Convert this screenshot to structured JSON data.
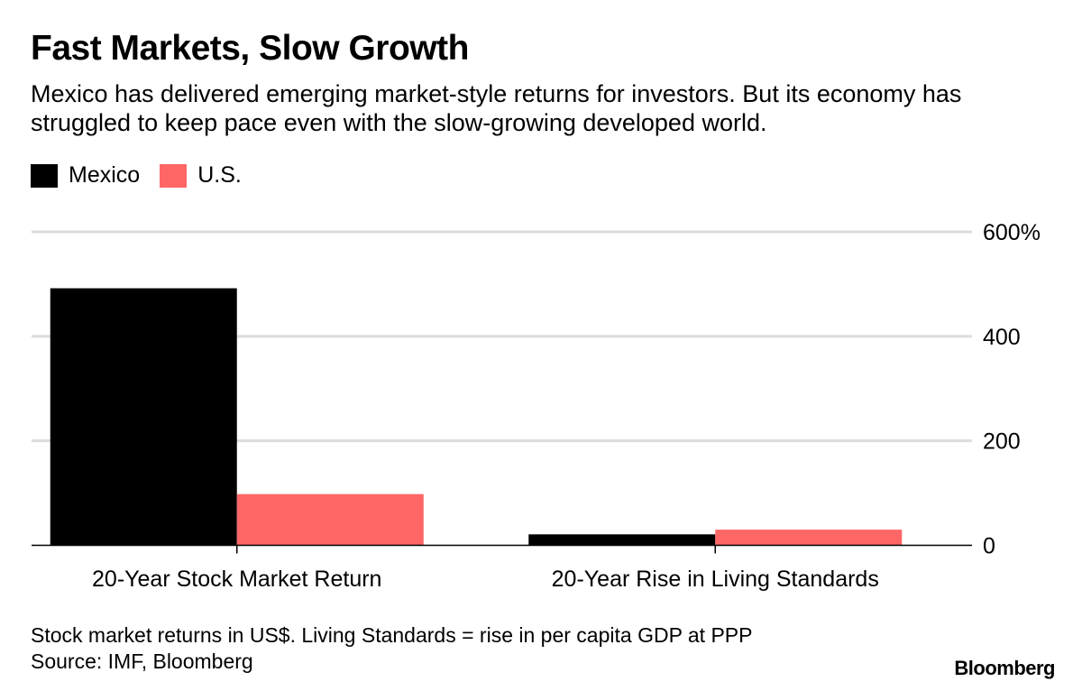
{
  "chart_data": {
    "type": "bar",
    "title": "Fast Markets, Slow Growth",
    "subtitle": "Mexico has delivered emerging market-style returns for investors. But its economy has struggled to keep pace even with the slow-growing developed world.",
    "categories": [
      "20-Year Stock Market Return",
      "20-Year Rise in Living Standards"
    ],
    "series": [
      {
        "name": "Mexico",
        "color": "#000000",
        "values": [
          492,
          21
        ]
      },
      {
        "name": "U.S.",
        "color": "#ff6666",
        "values": [
          98,
          30
        ]
      }
    ],
    "ylim": [
      0,
      600
    ],
    "yticks": [
      0,
      200,
      400,
      600
    ],
    "ytick_labels": [
      "0",
      "200",
      "400",
      "600%"
    ],
    "y_axis_side": "right",
    "grid": true,
    "legend_position": "top-left",
    "footnote": "Stock market returns in US$. Living Standards = rise in per capita GDP at PPP",
    "source": "Source: IMF, Bloomberg"
  },
  "brand": "Bloomberg"
}
